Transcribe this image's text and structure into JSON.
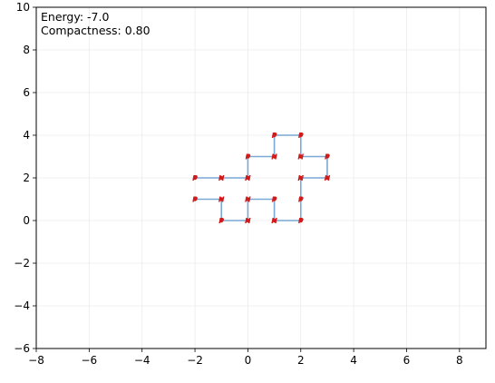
{
  "chart_data": {
    "type": "line",
    "annotation": {
      "energy": "Energy: -7.0",
      "compactness": "Compactness: 0.80"
    },
    "xlim": [
      -8,
      9
    ],
    "ylim": [
      -6,
      10
    ],
    "x_ticks": [
      -8,
      -6,
      -4,
      -2,
      0,
      2,
      4,
      6,
      8
    ],
    "y_ticks": [
      -6,
      -4,
      -2,
      0,
      2,
      4,
      6,
      8,
      10
    ],
    "x_tick_labels": [
      "−8",
      "−6",
      "−4",
      "−2",
      "0",
      "2",
      "4",
      "6",
      "8"
    ],
    "y_tick_labels": [
      "−6",
      "−4",
      "−2",
      "0",
      "2",
      "4",
      "6",
      "8",
      "10"
    ],
    "grid": true,
    "line_color": "#7aa9d6",
    "marker_color": "#d11a1a",
    "series": [
      {
        "points": [
          {
            "x": -2,
            "y": 2,
            "label": "P"
          },
          {
            "x": -1,
            "y": 2,
            "label": "H"
          },
          {
            "x": 0,
            "y": 2,
            "label": "H"
          },
          {
            "x": 0,
            "y": 3,
            "label": "P"
          },
          {
            "x": 1,
            "y": 3,
            "label": "H"
          },
          {
            "x": 1,
            "y": 4,
            "label": "P"
          },
          {
            "x": 2,
            "y": 4,
            "label": "P"
          },
          {
            "x": 2,
            "y": 3,
            "label": "H"
          },
          {
            "x": 3,
            "y": 3,
            "label": "P"
          },
          {
            "x": 3,
            "y": 2,
            "label": "H"
          },
          {
            "x": 2,
            "y": 2,
            "label": "H"
          },
          {
            "x": 2,
            "y": 1,
            "label": "P"
          },
          {
            "x": 2,
            "y": 0,
            "label": "P"
          },
          {
            "x": 1,
            "y": 0,
            "label": "H"
          },
          {
            "x": 1,
            "y": 1,
            "label": "P"
          },
          {
            "x": 0,
            "y": 1,
            "label": "H"
          },
          {
            "x": 0,
            "y": 0,
            "label": "H"
          },
          {
            "x": -1,
            "y": 0,
            "label": "P"
          },
          {
            "x": -1,
            "y": 1,
            "label": "H"
          },
          {
            "x": -2,
            "y": 1,
            "label": "P"
          }
        ]
      }
    ]
  }
}
